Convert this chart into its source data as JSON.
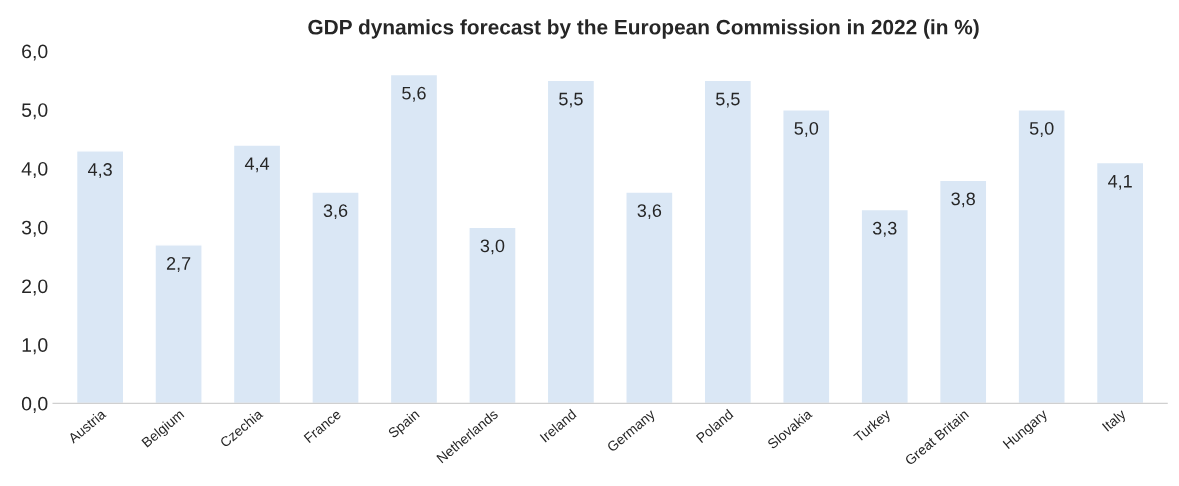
{
  "chart_data": {
    "type": "bar",
    "title": "GDP dynamics forecast by the European Commission in 2022 (in %)",
    "categories": [
      "Austria",
      "Belgium",
      "Czechia",
      "France",
      "Spain",
      "Netherlands",
      "Ireland",
      "Germany",
      "Poland",
      "Slovakia",
      "Turkey",
      "Great Britain",
      "Hungary",
      "Italy"
    ],
    "values": [
      4.3,
      2.7,
      4.4,
      3.6,
      5.6,
      3.0,
      5.5,
      3.6,
      5.5,
      5.0,
      3.3,
      3.8,
      5.0,
      4.1
    ],
    "value_labels": [
      "4,3",
      "2,7",
      "4,4",
      "3,6",
      "5,6",
      "3,0",
      "5,5",
      "3,6",
      "5,5",
      "5,0",
      "3,3",
      "3,8",
      "5,0",
      "4,1"
    ],
    "color": "#dae7f5",
    "ylim": [
      0,
      6
    ],
    "yticks": [
      {
        "value": 0,
        "label": "0,0"
      },
      {
        "value": 1,
        "label": "1,0"
      },
      {
        "value": 2,
        "label": "2,0"
      },
      {
        "value": 3,
        "label": "3,0"
      },
      {
        "value": 4,
        "label": "4,0"
      },
      {
        "value": 5,
        "label": "5,0"
      },
      {
        "value": 6,
        "label": "6,0"
      }
    ],
    "grid": false
  }
}
